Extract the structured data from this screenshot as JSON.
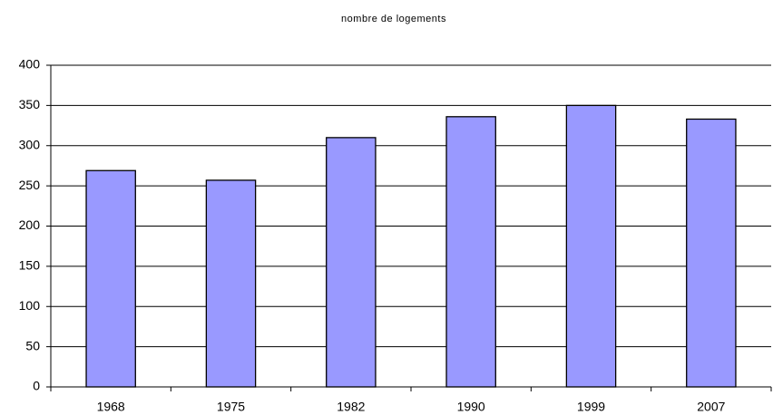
{
  "chart_data": {
    "type": "bar",
    "title": "nombre de logements",
    "categories": [
      "1968",
      "1975",
      "1982",
      "1990",
      "1999",
      "2007"
    ],
    "values": [
      269,
      257,
      310,
      336,
      350,
      333
    ],
    "color": "#9999ff",
    "ylim": [
      0,
      400
    ],
    "yticks": [
      0,
      50,
      100,
      150,
      200,
      250,
      300,
      350,
      400
    ],
    "grid": true
  }
}
